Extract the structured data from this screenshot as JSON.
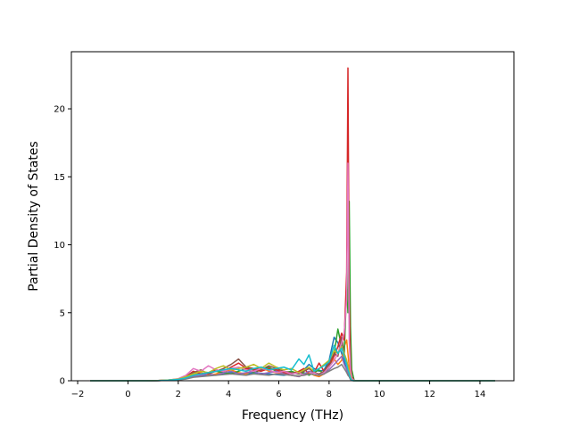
{
  "chart_data": {
    "type": "line",
    "title": "",
    "xlabel": "Frequency (THz)",
    "ylabel": "Partial Density of States",
    "xlim": [
      -2.25,
      15.35
    ],
    "ylim": [
      0,
      24.2
    ],
    "xticks": [
      -2,
      0,
      2,
      4,
      6,
      8,
      10,
      12,
      14
    ],
    "yticks": [
      0,
      5,
      10,
      15,
      20
    ],
    "grid": false,
    "legend": "none",
    "colors": [
      "#1f77b4",
      "#ff7f0e",
      "#2ca02c",
      "#d62728",
      "#9467bd",
      "#8c564b",
      "#e377c2",
      "#7f7f7f",
      "#bcbd22",
      "#17becf"
    ],
    "x": [
      -1.5,
      0.0,
      0.7,
      1.2,
      1.6,
      2.0,
      2.3,
      2.6,
      2.9,
      3.2,
      3.5,
      3.8,
      4.1,
      4.4,
      4.7,
      5.0,
      5.3,
      5.6,
      5.9,
      6.2,
      6.5,
      6.8,
      7.0,
      7.2,
      7.4,
      7.6,
      7.8,
      8.0,
      8.2,
      8.35,
      8.5,
      8.6,
      8.7,
      8.75,
      8.8,
      8.85,
      8.9,
      9.0,
      9.2,
      10.0,
      12.0,
      14.6
    ],
    "series": [
      {
        "values": [
          0,
          0,
          0,
          0.02,
          0.05,
          0.1,
          0.2,
          0.3,
          0.35,
          0.4,
          0.45,
          0.5,
          0.6,
          0.55,
          0.5,
          0.6,
          0.55,
          0.5,
          0.45,
          0.4,
          0.5,
          0.6,
          0.8,
          1.2,
          0.9,
          0.7,
          0.8,
          1.5,
          3.2,
          2.8,
          2.0,
          1.5,
          0.8,
          0.5,
          0.3,
          0.1,
          0.02,
          0,
          0,
          0,
          0,
          0
        ]
      },
      {
        "values": [
          0,
          0,
          0,
          0.01,
          0.03,
          0.08,
          0.25,
          0.5,
          0.6,
          0.4,
          0.5,
          0.7,
          0.8,
          0.6,
          0.5,
          0.8,
          1.0,
          0.7,
          0.6,
          0.5,
          0.4,
          0.3,
          0.5,
          0.6,
          0.4,
          0.3,
          0.5,
          1.0,
          1.6,
          1.2,
          1.5,
          2.5,
          3.0,
          2.0,
          1.0,
          0.4,
          0.1,
          0,
          0,
          0,
          0,
          0
        ]
      },
      {
        "values": [
          0,
          0,
          0,
          0.02,
          0.04,
          0.1,
          0.2,
          0.4,
          0.5,
          0.6,
          0.7,
          0.6,
          0.5,
          0.7,
          0.9,
          0.6,
          0.8,
          1.0,
          0.7,
          0.6,
          0.7,
          0.5,
          0.6,
          0.4,
          0.6,
          0.8,
          0.5,
          1.0,
          2.0,
          3.8,
          2.5,
          1.8,
          7.0,
          5.0,
          13.2,
          4.0,
          0.8,
          0,
          0,
          0,
          0,
          0
        ]
      },
      {
        "values": [
          0,
          0,
          0,
          0.02,
          0.05,
          0.12,
          0.3,
          0.7,
          0.5,
          0.6,
          0.8,
          0.7,
          1.0,
          1.3,
          0.9,
          0.8,
          0.7,
          0.9,
          0.8,
          0.6,
          0.5,
          0.7,
          0.9,
          0.5,
          0.6,
          1.3,
          0.7,
          1.2,
          1.8,
          2.5,
          3.5,
          3.0,
          8.0,
          23.0,
          6.0,
          1.2,
          0.3,
          0,
          0,
          0,
          0,
          0
        ]
      },
      {
        "values": [
          0,
          0,
          0,
          0.01,
          0.03,
          0.07,
          0.15,
          0.3,
          0.4,
          0.5,
          0.4,
          0.6,
          0.7,
          0.5,
          0.6,
          0.7,
          0.5,
          0.6,
          0.7,
          0.5,
          0.4,
          0.3,
          0.5,
          0.7,
          0.6,
          0.4,
          0.5,
          0.8,
          1.2,
          1.5,
          1.8,
          1.2,
          0.8,
          0.6,
          0.4,
          0.2,
          0.05,
          0,
          0,
          0,
          0,
          0
        ]
      },
      {
        "values": [
          0,
          0,
          0,
          0.01,
          0.04,
          0.1,
          0.3,
          0.6,
          0.8,
          0.5,
          0.7,
          0.9,
          1.2,
          1.6,
          1.0,
          0.9,
          0.8,
          1.1,
          0.9,
          0.7,
          0.6,
          0.5,
          0.7,
          0.9,
          0.6,
          0.5,
          0.7,
          1.3,
          2.0,
          1.8,
          3.2,
          2.0,
          1.5,
          1.0,
          0.5,
          0.2,
          0.05,
          0,
          0,
          0,
          0,
          0
        ]
      },
      {
        "values": [
          0,
          0,
          0,
          0.02,
          0.05,
          0.15,
          0.4,
          0.9,
          0.7,
          1.1,
          0.8,
          0.7,
          0.9,
          1.0,
          0.8,
          0.7,
          0.9,
          0.8,
          0.6,
          0.7,
          0.5,
          0.6,
          0.4,
          0.5,
          0.6,
          0.4,
          0.6,
          1.0,
          1.5,
          2.0,
          2.8,
          3.5,
          6.0,
          16.0,
          3.0,
          0.8,
          0.2,
          0,
          0,
          0,
          0,
          0
        ]
      },
      {
        "values": [
          0,
          0,
          0,
          0.01,
          0.03,
          0.06,
          0.12,
          0.25,
          0.3,
          0.35,
          0.4,
          0.45,
          0.5,
          0.45,
          0.4,
          0.5,
          0.45,
          0.4,
          0.5,
          0.45,
          0.4,
          0.35,
          0.4,
          0.5,
          0.45,
          0.4,
          0.5,
          0.7,
          0.9,
          1.0,
          1.2,
          0.9,
          0.6,
          0.4,
          0.3,
          0.1,
          0.02,
          0,
          0,
          0,
          0,
          0
        ]
      },
      {
        "values": [
          0,
          0,
          0,
          0.02,
          0.06,
          0.12,
          0.3,
          0.5,
          0.7,
          0.6,
          0.9,
          1.1,
          0.8,
          0.9,
          1.0,
          1.2,
          0.9,
          1.3,
          1.0,
          0.8,
          0.9,
          0.6,
          0.8,
          1.0,
          0.7,
          0.9,
          1.2,
          1.5,
          2.2,
          2.0,
          2.5,
          2.0,
          1.5,
          1.0,
          0.7,
          0.3,
          0.05,
          0,
          0,
          0,
          0,
          0
        ]
      },
      {
        "values": [
          0,
          0,
          0,
          0.01,
          0.04,
          0.1,
          0.2,
          0.4,
          0.5,
          0.6,
          0.7,
          0.8,
          0.9,
          0.8,
          0.7,
          0.9,
          1.0,
          0.8,
          0.9,
          1.0,
          0.8,
          1.6,
          1.2,
          1.9,
          0.7,
          0.9,
          1.1,
          1.4,
          2.6,
          2.0,
          2.4,
          1.8,
          1.2,
          0.8,
          0.5,
          0.2,
          0.03,
          0,
          0,
          0,
          0,
          0
        ]
      }
    ]
  }
}
